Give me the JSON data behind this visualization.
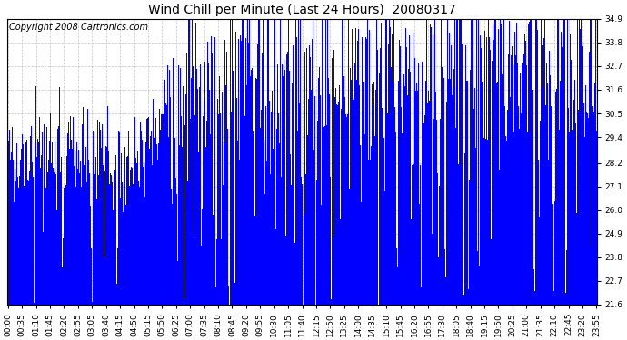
{
  "title": "Wind Chill per Minute (Last 24 Hours)  20080317",
  "copyright_text": "Copyright 2008 Cartronics.com",
  "line_color": "#0000FF",
  "bg_color": "#FFFFFF",
  "plot_bg_color": "#FFFFFF",
  "grid_color": "#AAAAAA",
  "ylim": [
    21.6,
    34.9
  ],
  "yticks": [
    21.6,
    22.7,
    23.8,
    24.9,
    26.0,
    27.1,
    28.2,
    29.4,
    30.5,
    31.6,
    32.7,
    33.8,
    34.9
  ],
  "x_tick_labels": [
    "00:00",
    "00:35",
    "01:10",
    "01:45",
    "02:20",
    "02:55",
    "03:05",
    "03:40",
    "04:15",
    "04:50",
    "05:15",
    "05:50",
    "06:25",
    "07:00",
    "07:35",
    "08:10",
    "08:45",
    "09:20",
    "09:55",
    "10:30",
    "11:05",
    "11:40",
    "12:15",
    "12:50",
    "13:25",
    "14:00",
    "14:35",
    "15:10",
    "15:45",
    "16:20",
    "16:55",
    "17:30",
    "18:05",
    "18:40",
    "19:15",
    "19:50",
    "20:25",
    "21:00",
    "21:35",
    "22:10",
    "22:45",
    "23:20",
    "23:55"
  ],
  "title_fontsize": 10,
  "tick_fontsize": 6.5,
  "copyright_fontsize": 7
}
